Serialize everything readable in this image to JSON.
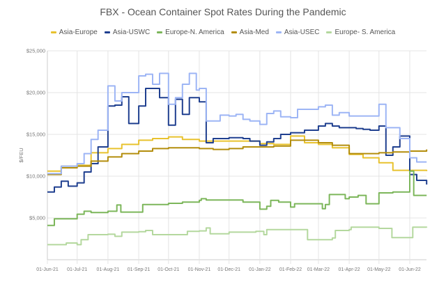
{
  "chart_data": {
    "type": "line",
    "title": "FBX - Ocean Container Spot Rates During the Pandemic",
    "ylabel": "$/FEU",
    "xlabel": "",
    "ylim": [
      0,
      25000
    ],
    "xlim": [
      "2021-06-01",
      "2022-06-18"
    ],
    "grid": true,
    "legend_position": "top",
    "yticks": [
      0,
      5000,
      10000,
      15000,
      20000,
      25000
    ],
    "ytick_labels": [
      "",
      "$5,000",
      "$10,000",
      "$15,000",
      "$20,000",
      "$25,000"
    ],
    "xticks": [
      "2021-06-01",
      "2021-07-01",
      "2021-08-01",
      "2021-09-01",
      "2021-10-01",
      "2021-11-01",
      "2021-12-01",
      "2022-01-01",
      "2022-02-01",
      "2022-03-01",
      "2022-04-01",
      "2022-05-01",
      "2022-06-01"
    ],
    "xtick_labels": [
      "01-Jun-21",
      "01-Jul-21",
      "01-Aug-21",
      "01-Sep-21",
      "01-Oct-21",
      "01-Nov-21",
      "01-Dec-21",
      "01-Jan-22",
      "01-Feb-22",
      "01-Mar-22",
      "01-Apr-22",
      "01-May-22",
      "01-Jun-22"
    ],
    "series": [
      {
        "name": "Asia-Europe",
        "color": "#e8c22e",
        "points": [
          [
            "2021-06-01",
            10600
          ],
          [
            "2021-06-15",
            11200
          ],
          [
            "2021-07-01",
            11300
          ],
          [
            "2021-07-15",
            12800
          ],
          [
            "2021-08-01",
            13300
          ],
          [
            "2021-08-15",
            13800
          ],
          [
            "2021-09-01",
            14300
          ],
          [
            "2021-09-15",
            14500
          ],
          [
            "2021-10-01",
            14700
          ],
          [
            "2021-10-15",
            14400
          ],
          [
            "2021-11-01",
            14200
          ],
          [
            "2021-11-15",
            14200
          ],
          [
            "2021-12-01",
            14200
          ],
          [
            "2021-12-15",
            14200
          ],
          [
            "2022-01-01",
            13900
          ],
          [
            "2022-01-15",
            13800
          ],
          [
            "2022-02-01",
            14800
          ],
          [
            "2022-02-15",
            14000
          ],
          [
            "2022-03-01",
            13800
          ],
          [
            "2022-03-15",
            13400
          ],
          [
            "2022-04-01",
            12600
          ],
          [
            "2022-04-15",
            12200
          ],
          [
            "2022-05-01",
            11600
          ],
          [
            "2022-05-15",
            10700
          ],
          [
            "2022-06-01",
            10700
          ],
          [
            "2022-06-18",
            10600
          ]
        ]
      },
      {
        "name": "Asia-USWC",
        "color": "#1f3f8f",
        "points": [
          [
            "2021-06-01",
            8100
          ],
          [
            "2021-06-08",
            8700
          ],
          [
            "2021-06-15",
            9400
          ],
          [
            "2021-06-22",
            8800
          ],
          [
            "2021-07-01",
            9200
          ],
          [
            "2021-07-08",
            10500
          ],
          [
            "2021-07-15",
            11500
          ],
          [
            "2021-07-22",
            13500
          ],
          [
            "2021-08-01",
            18400
          ],
          [
            "2021-08-08",
            18500
          ],
          [
            "2021-08-15",
            19500
          ],
          [
            "2021-08-22",
            16300
          ],
          [
            "2021-09-01",
            18400
          ],
          [
            "2021-09-08",
            20500
          ],
          [
            "2021-09-15",
            20500
          ],
          [
            "2021-09-22",
            19400
          ],
          [
            "2021-10-01",
            16100
          ],
          [
            "2021-10-08",
            19200
          ],
          [
            "2021-10-15",
            17400
          ],
          [
            "2021-10-22",
            19400
          ],
          [
            "2021-11-01",
            18900
          ],
          [
            "2021-11-08",
            14000
          ],
          [
            "2021-11-15",
            14500
          ],
          [
            "2021-11-22",
            14500
          ],
          [
            "2021-12-01",
            14600
          ],
          [
            "2021-12-08",
            14600
          ],
          [
            "2021-12-15",
            14500
          ],
          [
            "2021-12-22",
            14200
          ],
          [
            "2022-01-01",
            13700
          ],
          [
            "2022-01-08",
            14100
          ],
          [
            "2022-01-15",
            14500
          ],
          [
            "2022-01-22",
            15000
          ],
          [
            "2022-02-01",
            15200
          ],
          [
            "2022-02-08",
            15200
          ],
          [
            "2022-02-15",
            15500
          ],
          [
            "2022-02-22",
            15500
          ],
          [
            "2022-03-01",
            16000
          ],
          [
            "2022-03-08",
            16300
          ],
          [
            "2022-03-15",
            16000
          ],
          [
            "2022-03-22",
            15800
          ],
          [
            "2022-04-01",
            15800
          ],
          [
            "2022-04-08",
            15700
          ],
          [
            "2022-04-15",
            15600
          ],
          [
            "2022-04-22",
            15500
          ],
          [
            "2022-05-01",
            16000
          ],
          [
            "2022-05-08",
            12500
          ],
          [
            "2022-05-15",
            13500
          ],
          [
            "2022-05-22",
            14800
          ],
          [
            "2022-06-01",
            10200
          ],
          [
            "2022-06-08",
            9500
          ],
          [
            "2022-06-18",
            9000
          ]
        ]
      },
      {
        "name": "Europe-N. America",
        "color": "#7cb65a",
        "points": [
          [
            "2021-06-01",
            4100
          ],
          [
            "2021-06-08",
            4900
          ],
          [
            "2021-07-01",
            5450
          ],
          [
            "2021-07-08",
            5800
          ],
          [
            "2021-07-15",
            5650
          ],
          [
            "2021-08-01",
            5800
          ],
          [
            "2021-08-10",
            6550
          ],
          [
            "2021-08-14",
            5700
          ],
          [
            "2021-09-01",
            5700
          ],
          [
            "2021-09-05",
            6600
          ],
          [
            "2021-09-15",
            6600
          ],
          [
            "2021-10-01",
            6750
          ],
          [
            "2021-10-15",
            6900
          ],
          [
            "2021-11-01",
            7100
          ],
          [
            "2021-11-03",
            7300
          ],
          [
            "2021-11-08",
            7150
          ],
          [
            "2021-12-01",
            7150
          ],
          [
            "2021-12-15",
            6900
          ],
          [
            "2022-01-01",
            6050
          ],
          [
            "2022-01-08",
            6400
          ],
          [
            "2022-01-12",
            7100
          ],
          [
            "2022-01-20",
            6900
          ],
          [
            "2022-02-01",
            6300
          ],
          [
            "2022-02-05",
            6700
          ],
          [
            "2022-03-01",
            6700
          ],
          [
            "2022-03-05",
            6100
          ],
          [
            "2022-03-08",
            6600
          ],
          [
            "2022-03-12",
            7800
          ],
          [
            "2022-03-28",
            7300
          ],
          [
            "2022-04-01",
            7500
          ],
          [
            "2022-04-10",
            7700
          ],
          [
            "2022-04-18",
            6700
          ],
          [
            "2022-04-28",
            6700
          ],
          [
            "2022-05-01",
            8000
          ],
          [
            "2022-05-15",
            8100
          ],
          [
            "2022-05-28",
            8100
          ],
          [
            "2022-06-01",
            10600
          ],
          [
            "2022-06-05",
            7700
          ],
          [
            "2022-06-18",
            7700
          ]
        ]
      },
      {
        "name": "Asia-Med",
        "color": "#b38d0c",
        "points": [
          [
            "2021-06-01",
            10200
          ],
          [
            "2021-06-15",
            11000
          ],
          [
            "2021-07-01",
            11200
          ],
          [
            "2021-07-15",
            11800
          ],
          [
            "2021-08-01",
            12300
          ],
          [
            "2021-08-15",
            12700
          ],
          [
            "2021-09-01",
            13000
          ],
          [
            "2021-09-15",
            13300
          ],
          [
            "2021-10-01",
            13400
          ],
          [
            "2021-10-15",
            13400
          ],
          [
            "2021-11-01",
            13300
          ],
          [
            "2021-11-15",
            13200
          ],
          [
            "2021-12-01",
            13300
          ],
          [
            "2021-12-15",
            13500
          ],
          [
            "2022-01-01",
            13500
          ],
          [
            "2022-01-15",
            13600
          ],
          [
            "2022-02-01",
            14300
          ],
          [
            "2022-02-15",
            14300
          ],
          [
            "2022-03-01",
            14000
          ],
          [
            "2022-03-15",
            13700
          ],
          [
            "2022-04-01",
            12700
          ],
          [
            "2022-04-15",
            12700
          ],
          [
            "2022-05-01",
            12800
          ],
          [
            "2022-05-15",
            12900
          ],
          [
            "2022-06-01",
            13000
          ],
          [
            "2022-06-18",
            13200
          ]
        ]
      },
      {
        "name": "Asia-USEC",
        "color": "#9db5f5",
        "points": [
          [
            "2021-06-01",
            10300
          ],
          [
            "2021-06-15",
            11200
          ],
          [
            "2021-07-01",
            11500
          ],
          [
            "2021-07-08",
            12700
          ],
          [
            "2021-07-15",
            14400
          ],
          [
            "2021-07-22",
            15500
          ],
          [
            "2021-08-01",
            20800
          ],
          [
            "2021-08-08",
            19000
          ],
          [
            "2021-08-15",
            20000
          ],
          [
            "2021-08-22",
            20000
          ],
          [
            "2021-09-01",
            22000
          ],
          [
            "2021-09-08",
            22200
          ],
          [
            "2021-09-15",
            21000
          ],
          [
            "2021-09-22",
            22300
          ],
          [
            "2021-10-01",
            18600
          ],
          [
            "2021-10-08",
            19400
          ],
          [
            "2021-10-15",
            21000
          ],
          [
            "2021-10-22",
            22300
          ],
          [
            "2021-10-29",
            20300
          ],
          [
            "2021-11-01",
            20500
          ],
          [
            "2021-11-08",
            16600
          ],
          [
            "2021-11-15",
            16600
          ],
          [
            "2021-11-22",
            17300
          ],
          [
            "2021-12-01",
            17200
          ],
          [
            "2021-12-08",
            17400
          ],
          [
            "2021-12-15",
            16800
          ],
          [
            "2021-12-22",
            16600
          ],
          [
            "2022-01-01",
            16200
          ],
          [
            "2022-01-08",
            17500
          ],
          [
            "2022-01-15",
            17800
          ],
          [
            "2022-01-22",
            17100
          ],
          [
            "2022-02-01",
            17000
          ],
          [
            "2022-02-08",
            18000
          ],
          [
            "2022-02-22",
            18000
          ],
          [
            "2022-03-01",
            18300
          ],
          [
            "2022-03-08",
            18500
          ],
          [
            "2022-03-15",
            17300
          ],
          [
            "2022-03-22",
            17600
          ],
          [
            "2022-04-01",
            17200
          ],
          [
            "2022-04-22",
            17200
          ],
          [
            "2022-05-01",
            18600
          ],
          [
            "2022-05-08",
            15800
          ],
          [
            "2022-05-15",
            15800
          ],
          [
            "2022-05-22",
            14500
          ],
          [
            "2022-06-01",
            12200
          ],
          [
            "2022-06-08",
            11700
          ],
          [
            "2022-06-18",
            11700
          ]
        ]
      },
      {
        "name": "Europe- S. America",
        "color": "#b4d89e",
        "points": [
          [
            "2021-06-01",
            1800
          ],
          [
            "2021-06-20",
            2000
          ],
          [
            "2021-07-01",
            1800
          ],
          [
            "2021-07-05",
            2400
          ],
          [
            "2021-07-12",
            3000
          ],
          [
            "2021-08-01",
            3050
          ],
          [
            "2021-08-08",
            2800
          ],
          [
            "2021-08-15",
            3300
          ],
          [
            "2021-09-01",
            3350
          ],
          [
            "2021-09-08",
            3500
          ],
          [
            "2021-09-15",
            3000
          ],
          [
            "2021-10-01",
            3000
          ],
          [
            "2021-10-20",
            3400
          ],
          [
            "2021-11-01",
            3450
          ],
          [
            "2021-11-08",
            3800
          ],
          [
            "2021-11-12",
            3100
          ],
          [
            "2021-12-01",
            3300
          ],
          [
            "2021-12-28",
            3400
          ],
          [
            "2022-01-05",
            3000
          ],
          [
            "2022-01-08",
            3600
          ],
          [
            "2022-02-15",
            3600
          ],
          [
            "2022-02-18",
            2400
          ],
          [
            "2022-03-01",
            2400
          ],
          [
            "2022-03-15",
            2600
          ],
          [
            "2022-03-18",
            3500
          ],
          [
            "2022-04-01",
            3600
          ],
          [
            "2022-04-03",
            3900
          ],
          [
            "2022-05-01",
            3750
          ],
          [
            "2022-05-10",
            3750
          ],
          [
            "2022-05-14",
            2650
          ],
          [
            "2022-06-01",
            2650
          ],
          [
            "2022-06-04",
            3900
          ],
          [
            "2022-06-18",
            3850
          ]
        ]
      }
    ]
  }
}
